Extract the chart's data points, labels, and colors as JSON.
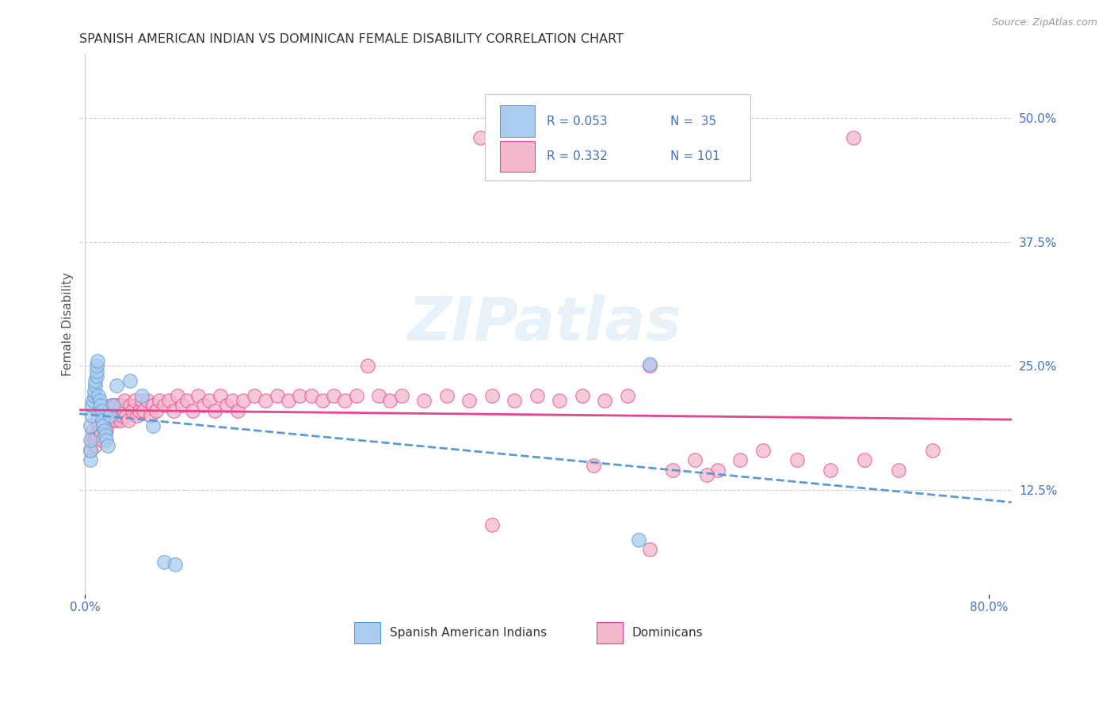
{
  "title": "SPANISH AMERICAN INDIAN VS DOMINICAN FEMALE DISABILITY CORRELATION CHART",
  "source": "Source: ZipAtlas.com",
  "ylabel": "Female Disability",
  "yticks": [
    "12.5%",
    "25.0%",
    "37.5%",
    "50.0%"
  ],
  "ytick_vals": [
    0.125,
    0.25,
    0.375,
    0.5
  ],
  "xlim": [
    -0.005,
    0.82
  ],
  "ylim": [
    0.02,
    0.565
  ],
  "color_blue": "#aaccf0",
  "color_pink": "#f4b8cc",
  "color_blue_dark": "#5b9bd5",
  "color_pink_dark": "#e84393",
  "color_text_blue": "#4472c4",
  "sai_x": [
    0.005,
    0.005,
    0.005,
    0.005,
    0.006,
    0.006,
    0.007,
    0.008,
    0.008,
    0.009,
    0.009,
    0.01,
    0.01,
    0.01,
    0.011,
    0.012,
    0.013,
    0.014,
    0.015,
    0.015,
    0.016,
    0.017,
    0.018,
    0.019,
    0.02,
    0.022,
    0.025,
    0.028,
    0.04,
    0.05,
    0.06,
    0.07,
    0.08,
    0.5,
    0.49
  ],
  "sai_y": [
    0.155,
    0.165,
    0.175,
    0.19,
    0.2,
    0.21,
    0.215,
    0.22,
    0.225,
    0.23,
    0.235,
    0.24,
    0.245,
    0.25,
    0.255,
    0.22,
    0.215,
    0.21,
    0.205,
    0.195,
    0.19,
    0.185,
    0.18,
    0.175,
    0.17,
    0.2,
    0.21,
    0.23,
    0.235,
    0.22,
    0.19,
    0.052,
    0.05,
    0.252,
    0.075
  ],
  "dom_x": [
    0.005,
    0.006,
    0.007,
    0.008,
    0.009,
    0.01,
    0.011,
    0.012,
    0.013,
    0.014,
    0.015,
    0.016,
    0.018,
    0.019,
    0.02,
    0.021,
    0.022,
    0.023,
    0.024,
    0.025,
    0.026,
    0.027,
    0.028,
    0.029,
    0.03,
    0.031,
    0.032,
    0.033,
    0.034,
    0.035,
    0.036,
    0.038,
    0.04,
    0.042,
    0.044,
    0.046,
    0.048,
    0.05,
    0.052,
    0.055,
    0.058,
    0.06,
    0.063,
    0.066,
    0.07,
    0.074,
    0.078,
    0.082,
    0.086,
    0.09,
    0.095,
    0.1,
    0.105,
    0.11,
    0.115,
    0.12,
    0.125,
    0.13,
    0.135,
    0.14,
    0.15,
    0.16,
    0.17,
    0.18,
    0.19,
    0.2,
    0.21,
    0.22,
    0.23,
    0.24,
    0.25,
    0.26,
    0.27,
    0.28,
    0.3,
    0.32,
    0.34,
    0.36,
    0.38,
    0.4,
    0.42,
    0.44,
    0.46,
    0.48,
    0.5,
    0.52,
    0.54,
    0.56,
    0.58,
    0.6,
    0.63,
    0.66,
    0.69,
    0.72,
    0.75,
    0.35,
    0.45,
    0.55,
    0.36,
    0.68,
    0.5
  ],
  "dom_y": [
    0.165,
    0.175,
    0.185,
    0.175,
    0.17,
    0.18,
    0.195,
    0.19,
    0.185,
    0.18,
    0.175,
    0.195,
    0.2,
    0.185,
    0.195,
    0.205,
    0.2,
    0.21,
    0.195,
    0.2,
    0.205,
    0.21,
    0.195,
    0.2,
    0.205,
    0.195,
    0.21,
    0.2,
    0.205,
    0.215,
    0.2,
    0.195,
    0.21,
    0.205,
    0.215,
    0.2,
    0.205,
    0.215,
    0.205,
    0.215,
    0.2,
    0.21,
    0.205,
    0.215,
    0.21,
    0.215,
    0.205,
    0.22,
    0.21,
    0.215,
    0.205,
    0.22,
    0.21,
    0.215,
    0.205,
    0.22,
    0.21,
    0.215,
    0.205,
    0.215,
    0.22,
    0.215,
    0.22,
    0.215,
    0.22,
    0.22,
    0.215,
    0.22,
    0.215,
    0.22,
    0.25,
    0.22,
    0.215,
    0.22,
    0.215,
    0.22,
    0.215,
    0.22,
    0.215,
    0.22,
    0.215,
    0.22,
    0.215,
    0.22,
    0.25,
    0.145,
    0.155,
    0.145,
    0.155,
    0.165,
    0.155,
    0.145,
    0.155,
    0.145,
    0.165,
    0.48,
    0.15,
    0.14,
    0.09,
    0.48,
    0.065
  ]
}
